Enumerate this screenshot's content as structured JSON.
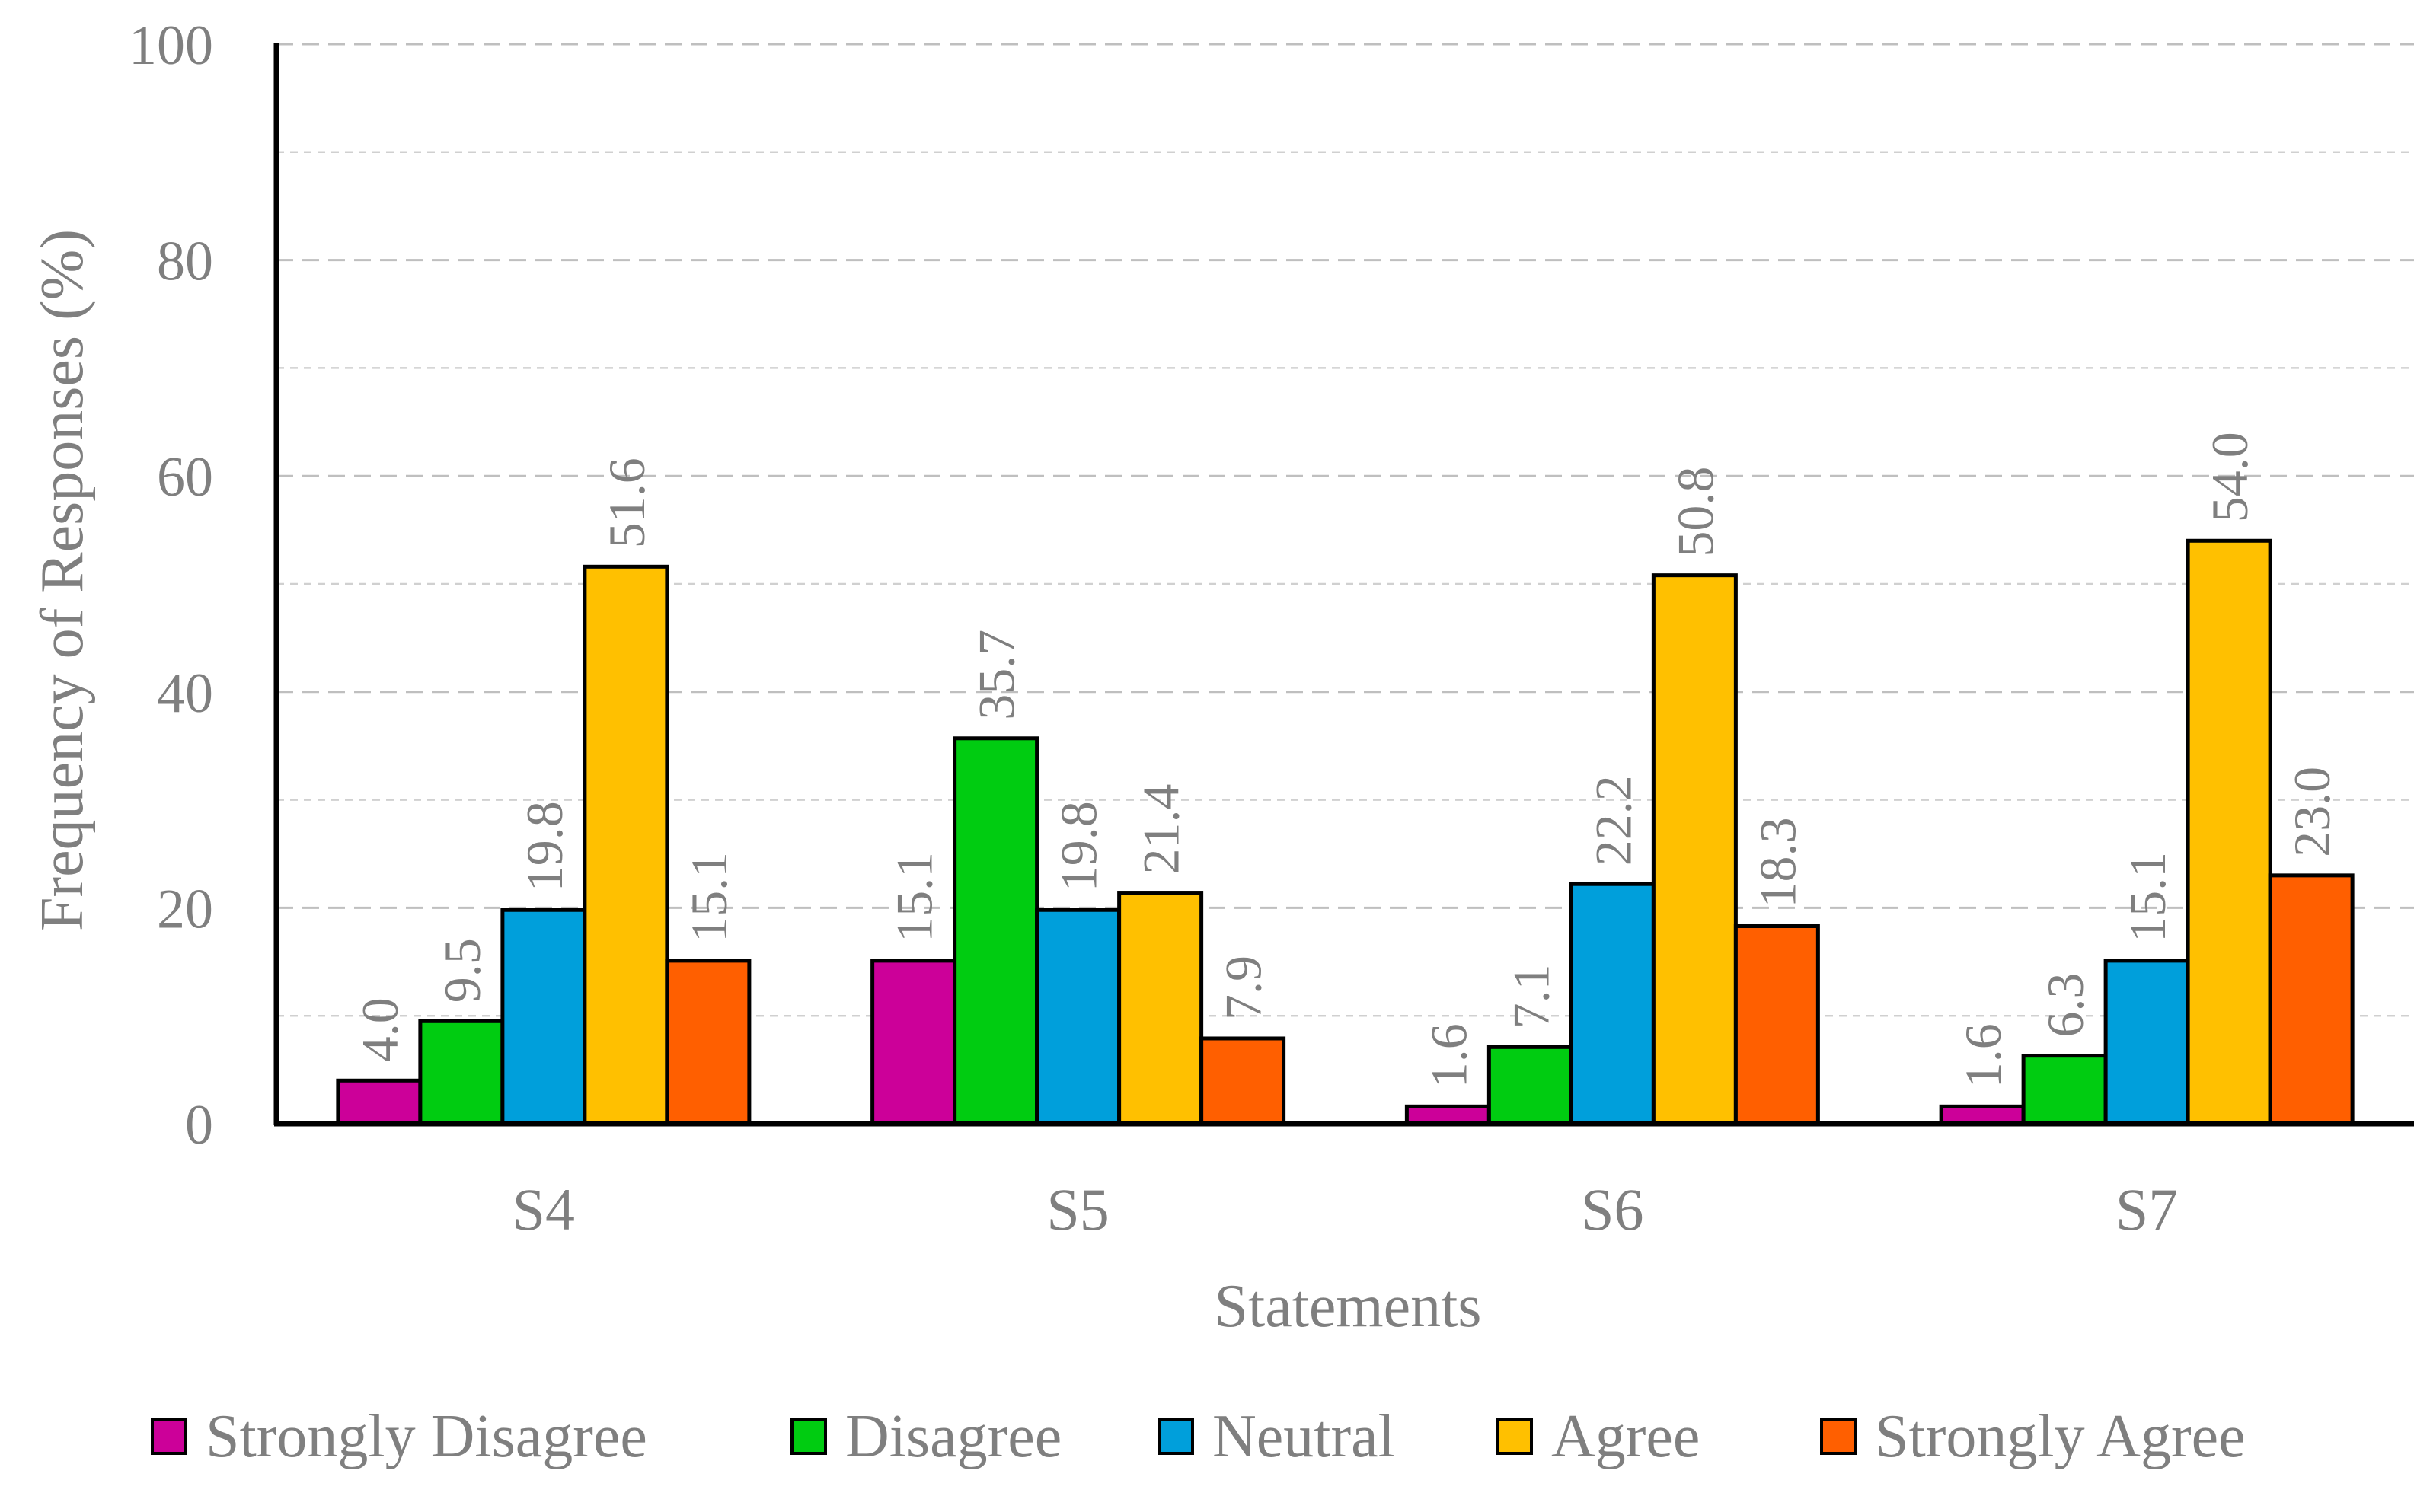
{
  "chart_data": {
    "type": "bar",
    "title": "",
    "xlabel": "Statements",
    "ylabel": "Frequency of Responses (%)",
    "ylim": [
      0,
      100
    ],
    "ytick_step": 20,
    "minor_grid_step": 10,
    "grid": true,
    "legend_position": "bottom",
    "categories": [
      "S4",
      "S5",
      "S6",
      "S7"
    ],
    "series": [
      {
        "name": "Strongly Disagree",
        "color": "#cc0099",
        "values": [
          4.0,
          15.1,
          1.6,
          1.6
        ],
        "labels": [
          "4.0",
          "15.1",
          "1.6",
          "1.6"
        ]
      },
      {
        "name": "Disagree",
        "color": "#00cc11",
        "values": [
          9.5,
          35.7,
          7.1,
          6.3
        ],
        "labels": [
          "9.5",
          "35.7",
          "7.1",
          "6.3"
        ]
      },
      {
        "name": "Neutral",
        "color": "#009fdb",
        "values": [
          19.8,
          19.8,
          22.2,
          15.1
        ],
        "labels": [
          "19.8",
          "19.8",
          "22.2",
          "15.1"
        ]
      },
      {
        "name": "Agree",
        "color": "#ffc000",
        "values": [
          51.6,
          21.4,
          50.8,
          54.0
        ],
        "labels": [
          "51.6",
          "21.4",
          "50.8",
          "54.0"
        ]
      },
      {
        "name": "Strongly Agree",
        "color": "#ff5f00",
        "values": [
          15.1,
          7.9,
          18.3,
          23.0
        ],
        "labels": [
          "15.1",
          "7.9",
          "18.3",
          "23.0"
        ]
      }
    ]
  }
}
